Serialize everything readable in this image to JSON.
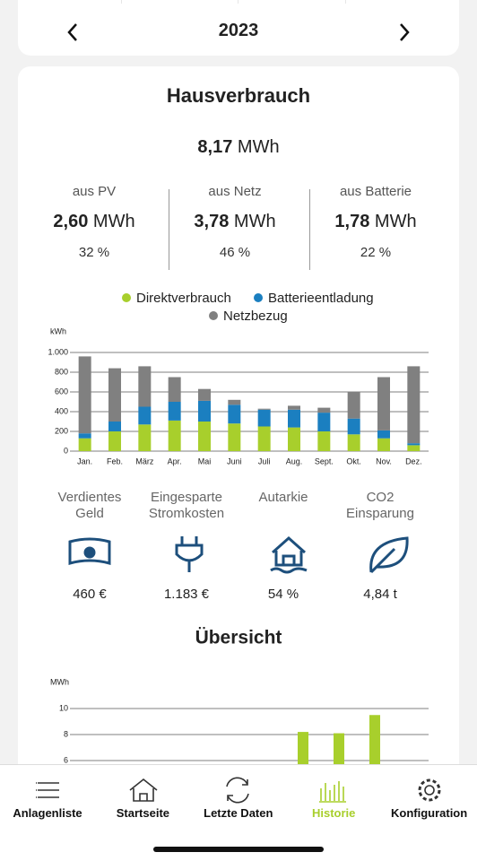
{
  "header": {
    "year": "2023"
  },
  "summary": {
    "title": "Hausverbrauch",
    "total": "8,17",
    "unit": "MWh",
    "sources": [
      {
        "label": "aus PV",
        "value": "2,60",
        "unit": "MWh",
        "share": "32 %"
      },
      {
        "label": "aus Netz",
        "value": "3,78",
        "unit": "MWh",
        "share": "46 %"
      },
      {
        "label": "aus Batterie",
        "value": "1,78",
        "unit": "MWh",
        "share": "22 %"
      }
    ]
  },
  "chart_data": [
    {
      "type": "bar",
      "stacked": true,
      "y_unit_label": "kWh",
      "categories": [
        "Jan.",
        "Feb.",
        "März",
        "Apr.",
        "Mai",
        "Juni",
        "Juli",
        "Aug.",
        "Sept.",
        "Okt.",
        "Nov.",
        "Dez."
      ],
      "series": [
        {
          "name": "Direktverbrauch",
          "color": "#a8cf2c",
          "values": [
            130,
            200,
            270,
            310,
            300,
            280,
            250,
            240,
            200,
            170,
            130,
            60
          ]
        },
        {
          "name": "Batterieentladung",
          "color": "#1b7fc0",
          "values": [
            50,
            100,
            180,
            190,
            210,
            190,
            170,
            180,
            190,
            160,
            80,
            20
          ]
        },
        {
          "name": "Netzbezug",
          "color": "#808080",
          "values": [
            780,
            540,
            410,
            250,
            120,
            50,
            10,
            40,
            50,
            270,
            540,
            780
          ]
        }
      ],
      "ylim": [
        0,
        1200
      ],
      "yticks": [
        0,
        200,
        400,
        600,
        800,
        {
          "value": 1000,
          "label": "1.000"
        }
      ],
      "grid": true
    },
    {
      "type": "bar",
      "title": "Übersicht",
      "y_unit_label": "MWh",
      "categories": [
        null,
        null,
        null,
        null,
        null,
        null,
        null,
        null,
        null,
        null
      ],
      "series": [
        {
          "color": "#a8cf2c",
          "values": [
            null,
            null,
            null,
            null,
            null,
            null,
            8.2,
            8.1,
            9.5,
            null
          ]
        }
      ],
      "ylim": [
        0,
        12
      ],
      "yticks": [
        6,
        8,
        10
      ],
      "grid": true
    }
  ],
  "stats": [
    {
      "label": "Verdientes Geld",
      "value": "460 €"
    },
    {
      "label": "Eingesparte Stromkosten",
      "value": "1.183 €"
    },
    {
      "label": "Autarkie",
      "value": "54 %"
    },
    {
      "label": "CO2 Einsparung",
      "value": "4,84 t"
    }
  ],
  "tabs": [
    {
      "label": "Anlagenliste"
    },
    {
      "label": "Startseite"
    },
    {
      "label": "Letzte Daten"
    },
    {
      "label": "Historie",
      "active": true
    },
    {
      "label": "Konfiguration"
    }
  ]
}
